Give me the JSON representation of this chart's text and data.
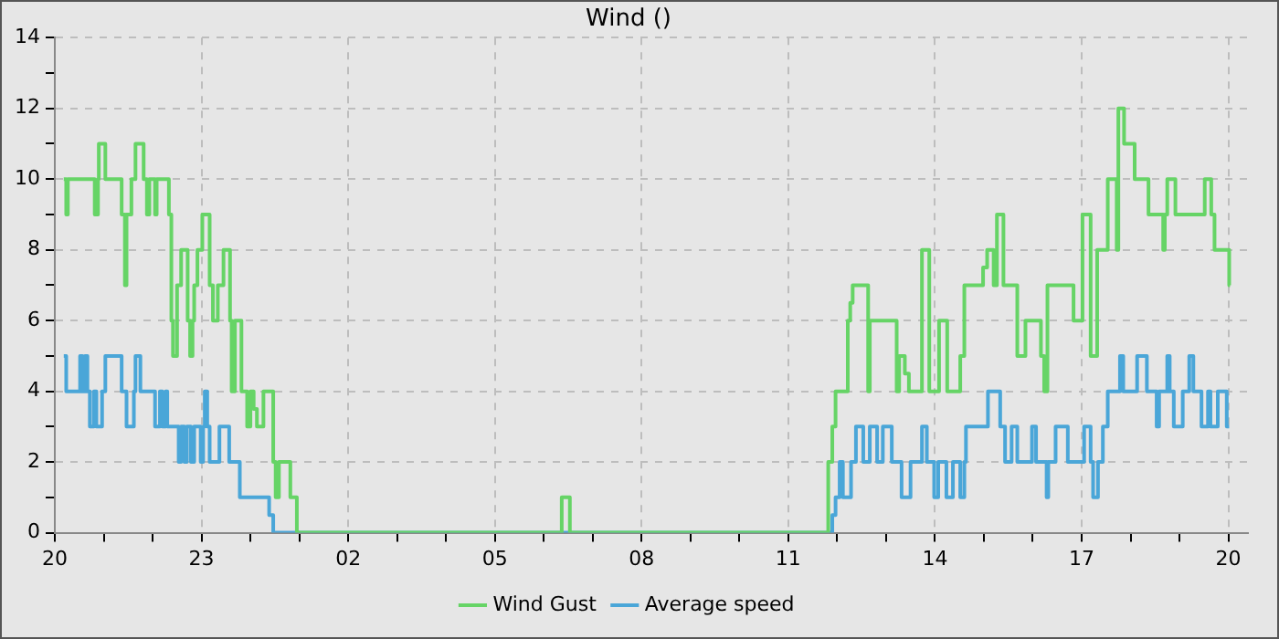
{
  "chart_data": {
    "type": "step",
    "title": "Wind ()",
    "xlim": [
      "--01-01T20:00",
      "--01-02T20:24"
    ],
    "xticks": [
      {
        "value": "--01-01T20:00",
        "label": "20"
      },
      {
        "value": "--01-01T21:00",
        "label": null
      },
      {
        "value": "--01-01T22:00",
        "label": null
      },
      {
        "value": "--01-01T23:00",
        "label": "23"
      },
      {
        "value": "--01-02T00:00",
        "label": null
      },
      {
        "value": "--01-02T01:00",
        "label": null
      },
      {
        "value": "--01-02T02:00",
        "label": "02"
      },
      {
        "value": "--01-02T03:00",
        "label": null
      },
      {
        "value": "--01-02T04:00",
        "label": null
      },
      {
        "value": "--01-02T05:00",
        "label": "05"
      },
      {
        "value": "--01-02T06:00",
        "label": null
      },
      {
        "value": "--01-02T07:00",
        "label": null
      },
      {
        "value": "--01-02T08:00",
        "label": "08"
      },
      {
        "value": "--01-02T09:00",
        "label": null
      },
      {
        "value": "--01-02T10:00",
        "label": null
      },
      {
        "value": "--01-02T11:00",
        "label": "11"
      },
      {
        "value": "--01-02T12:00",
        "label": null
      },
      {
        "value": "--01-02T13:00",
        "label": null
      },
      {
        "value": "--01-02T14:00",
        "label": "14"
      },
      {
        "value": "--01-02T15:00",
        "label": null
      },
      {
        "value": "--01-02T16:00",
        "label": null
      },
      {
        "value": "--01-02T17:00",
        "label": "17"
      },
      {
        "value": "--01-02T18:00",
        "label": null
      },
      {
        "value": "--01-02T19:00",
        "label": null
      },
      {
        "value": "--01-02T20:00",
        "label": "20"
      }
    ],
    "ylim": [
      0,
      14
    ],
    "yticks": [
      0,
      {
        "value": 1,
        "label": null
      },
      2,
      {
        "value": 3,
        "label": null
      },
      4,
      {
        "value": 5,
        "label": null
      },
      6,
      {
        "value": 7,
        "label": null
      },
      8,
      {
        "value": 9,
        "label": null
      },
      10,
      {
        "value": 11,
        "label": null
      },
      12,
      {
        "value": 13,
        "label": null
      },
      14
    ],
    "grid": true,
    "legend": "bottom",
    "marker": "none",
    "line_style": "solid",
    "series": [
      {
        "name": "Wind Gust",
        "color": "#66d466",
        "x": [
          "--01-01T20:11",
          "--01-01T20:14",
          "--01-01T20:16",
          "--01-01T20:49",
          "--01-01T20:53",
          "--01-01T20:54",
          "--01-01T21:02",
          "--01-01T21:22",
          "--01-01T21:26",
          "--01-01T21:28",
          "--01-01T21:34",
          "--01-01T21:39",
          "--01-01T21:49",
          "--01-01T21:53",
          "--01-01T21:56",
          "--01-01T22:03",
          "--01-01T22:05",
          "--01-01T22:20",
          "--01-01T22:23",
          "--01-01T22:25",
          "--01-01T22:30",
          "--01-01T22:35",
          "--01-01T22:43",
          "--01-01T22:46",
          "--01-01T22:49",
          "--01-01T22:51",
          "--01-01T22:55",
          "--01-01T23:01",
          "--01-01T23:10",
          "--01-01T23:14",
          "--01-01T23:20",
          "--01-01T23:27",
          "--01-01T23:35",
          "--01-01T23:37",
          "--01-01T23:41",
          "--01-01T23:49",
          "--01-01T23:56",
          "--01-02T00:00",
          "--01-02T00:04",
          "--01-02T00:08",
          "--01-02T00:16",
          "--01-02T00:28",
          "--01-02T00:31",
          "--01-02T00:35",
          "--01-02T00:49",
          "--01-02T00:57",
          "--01-02T06:22",
          "--01-02T06:32",
          "--01-02T11:49",
          "--01-02T11:54",
          "--01-02T11:58",
          "--01-02T12:13",
          "--01-02T12:16",
          "--01-02T12:19",
          "--01-02T12:38",
          "--01-02T12:40",
          "--01-02T13:13",
          "--01-02T13:16",
          "--01-02T13:23",
          "--01-02T13:28",
          "--01-02T13:44",
          "--01-02T13:53",
          "--01-02T14:05",
          "--01-02T14:15",
          "--01-02T14:31",
          "--01-02T14:36",
          "--01-02T14:59",
          "--01-02T15:04",
          "--01-02T15:12",
          "--01-02T15:16",
          "--01-02T15:24",
          "--01-02T15:41",
          "--01-02T15:51",
          "--01-02T16:10",
          "--01-02T16:14",
          "--01-02T16:18",
          "--01-02T16:50",
          "--01-02T17:01",
          "--01-02T17:11",
          "--01-02T17:19",
          "--01-02T17:32",
          "--01-02T17:43",
          "--01-02T17:45",
          "--01-02T17:52",
          "--01-02T18:05",
          "--01-02T18:22",
          "--01-02T18:40",
          "--01-02T18:42",
          "--01-02T18:45",
          "--01-02T18:55",
          "--01-02T19:31",
          "--01-02T19:39",
          "--01-02T19:43",
          "--01-02T20:01",
          "--01-02T20:02"
        ],
        "values": [
          10,
          9,
          10,
          9,
          10,
          11,
          10,
          9,
          7,
          9,
          10,
          11,
          10,
          9,
          10,
          9,
          10,
          9,
          6,
          5,
          7,
          8,
          6,
          5,
          6,
          7,
          8,
          9,
          7,
          6,
          7,
          8,
          6,
          4,
          6,
          4,
          3,
          4,
          3.5,
          3,
          4,
          2,
          1,
          2,
          1,
          0,
          1,
          0,
          2,
          3,
          4,
          6,
          6.5,
          7,
          4,
          6,
          4,
          5,
          4.5,
          4,
          8,
          4,
          6,
          4,
          5,
          7,
          7.5,
          8,
          7,
          9,
          7,
          5,
          6,
          5,
          4,
          7,
          6,
          9,
          5,
          8,
          10,
          8,
          12,
          11,
          10,
          9,
          8,
          9,
          10,
          9,
          10,
          9,
          8,
          7,
          7
        ]
      },
      {
        "name": "Average speed",
        "color": "#4aa6d8",
        "x": [
          "--01-01T20:11",
          "--01-01T20:14",
          "--01-01T20:31",
          "--01-01T20:34",
          "--01-01T20:37",
          "--01-01T20:40",
          "--01-01T20:43",
          "--01-01T20:48",
          "--01-01T20:51",
          "--01-01T20:58",
          "--01-01T21:02",
          "--01-01T21:22",
          "--01-01T21:28",
          "--01-01T21:37",
          "--01-01T21:39",
          "--01-01T21:45",
          "--01-01T22:03",
          "--01-01T22:09",
          "--01-01T22:12",
          "--01-01T22:16",
          "--01-01T22:18",
          "--01-01T22:32",
          "--01-01T22:35",
          "--01-01T22:39",
          "--01-01T22:42",
          "--01-01T22:47",
          "--01-01T22:51",
          "--01-01T22:59",
          "--01-01T23:02",
          "--01-01T23:04",
          "--01-01T23:07",
          "--01-01T23:10",
          "--01-01T23:22",
          "--01-01T23:34",
          "--01-01T23:47",
          "--01-02T00:23",
          "--01-02T00:28",
          "--01-02T11:54",
          "--01-02T11:58",
          "--01-02T12:03",
          "--01-02T12:07",
          "--01-02T12:17",
          "--01-02T12:23",
          "--01-02T12:32",
          "--01-02T12:40",
          "--01-02T12:49",
          "--01-02T12:56",
          "--01-02T13:07",
          "--01-02T13:19",
          "--01-02T13:30",
          "--01-02T13:44",
          "--01-02T13:50",
          "--01-02T13:59",
          "--01-02T14:04",
          "--01-02T14:14",
          "--01-02T14:22",
          "--01-02T14:31",
          "--01-02T14:36",
          "--01-02T14:38",
          "--01-02T15:05",
          "--01-02T15:20",
          "--01-02T15:26",
          "--01-02T15:34",
          "--01-02T15:41",
          "--01-02T15:59",
          "--01-02T16:04",
          "--01-02T16:17",
          "--01-02T16:19",
          "--01-02T16:28",
          "--01-02T16:43",
          "--01-02T17:03",
          "--01-02T17:11",
          "--01-02T17:14",
          "--01-02T17:20",
          "--01-02T17:26",
          "--01-02T17:32",
          "--01-02T17:47",
          "--01-02T17:51",
          "--01-02T18:08",
          "--01-02T18:20",
          "--01-02T18:32",
          "--01-02T18:35",
          "--01-02T18:45",
          "--01-02T18:48",
          "--01-02T18:53",
          "--01-02T19:04",
          "--01-02T19:12",
          "--01-02T19:17",
          "--01-02T19:27",
          "--01-02T19:35",
          "--01-02T19:38",
          "--01-02T19:47",
          "--01-02T19:58",
          "--01-02T20:01"
        ],
        "values": [
          5,
          4,
          5,
          4,
          5,
          4,
          3,
          4,
          3,
          4,
          5,
          4,
          3,
          4,
          5,
          4,
          3,
          4,
          3,
          4,
          3,
          2,
          3,
          2,
          3,
          2,
          3,
          2,
          3,
          4,
          3,
          2,
          3,
          2,
          1,
          0.5,
          0,
          0.5,
          1,
          2,
          1,
          2,
          3,
          2,
          3,
          2,
          3,
          2,
          1,
          2,
          3,
          2,
          1,
          2,
          1,
          2,
          1,
          2,
          3,
          4,
          3,
          2,
          3,
          2,
          3,
          2,
          1,
          2,
          3,
          2,
          3,
          2,
          1,
          2,
          3,
          4,
          5,
          4,
          5,
          4,
          3,
          4,
          5,
          4,
          3,
          4,
          5,
          4,
          3,
          4,
          3,
          4,
          3,
          3
        ]
      }
    ]
  }
}
